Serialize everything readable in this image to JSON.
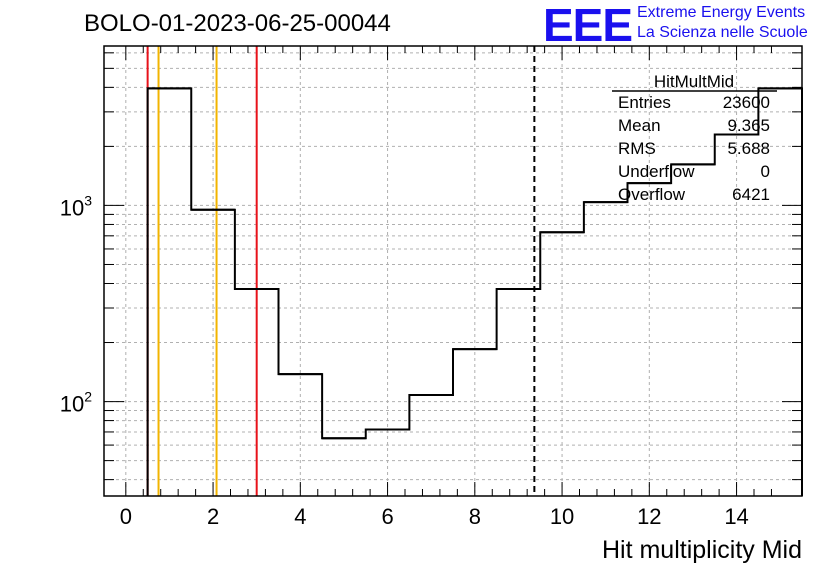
{
  "title": "BOLO-01-2023-06-25-00044",
  "logo": {
    "mark": "EEE",
    "line1": "Extreme Energy Events",
    "line2": "La Scienza nelle Scuole",
    "color": "#1a10ee"
  },
  "stats": {
    "name": "HitMultMid",
    "rows": [
      {
        "label": "Entries",
        "value": "23600"
      },
      {
        "label": "Mean",
        "value": "9.365"
      },
      {
        "label": "RMS",
        "value": "5.688"
      },
      {
        "label": "Underflow",
        "value": "0"
      },
      {
        "label": "Overflow",
        "value": "6421"
      }
    ]
  },
  "chart_data": {
    "type": "histogram",
    "xlabel": "Hit multiplicity Mid",
    "ylabel": "",
    "xlim": [
      -0.5,
      15.5
    ],
    "ylim": [
      33,
      6500
    ],
    "ylog": true,
    "grid": true,
    "x_ticks": [
      0,
      2,
      4,
      6,
      8,
      10,
      12,
      14
    ],
    "y_tick_labels": [
      {
        "value": 100,
        "mantissa": "10",
        "exp": "2"
      },
      {
        "value": 1000,
        "mantissa": "10",
        "exp": "3"
      }
    ],
    "bin_edges": [
      0.5,
      1.5,
      2.5,
      3.5,
      4.5,
      5.5,
      6.5,
      7.5,
      8.5,
      9.5,
      10.5,
      11.5,
      12.5,
      13.5,
      14.5,
      15.5
    ],
    "counts": [
      3950,
      950,
      375,
      138,
      65,
      72,
      108,
      185,
      375,
      730,
      1040,
      1300,
      1620,
      2300,
      3950
    ],
    "vertical_lines": [
      {
        "x": 0.5,
        "color": "#e8121a",
        "style": "solid"
      },
      {
        "x": 0.75,
        "color": "#f2b400",
        "style": "solid"
      },
      {
        "x": 2.08,
        "color": "#f2b400",
        "style": "solid"
      },
      {
        "x": 3.0,
        "color": "#e8121a",
        "style": "solid"
      },
      {
        "x": 9.365,
        "color": "#000000",
        "style": "dashed"
      }
    ]
  }
}
